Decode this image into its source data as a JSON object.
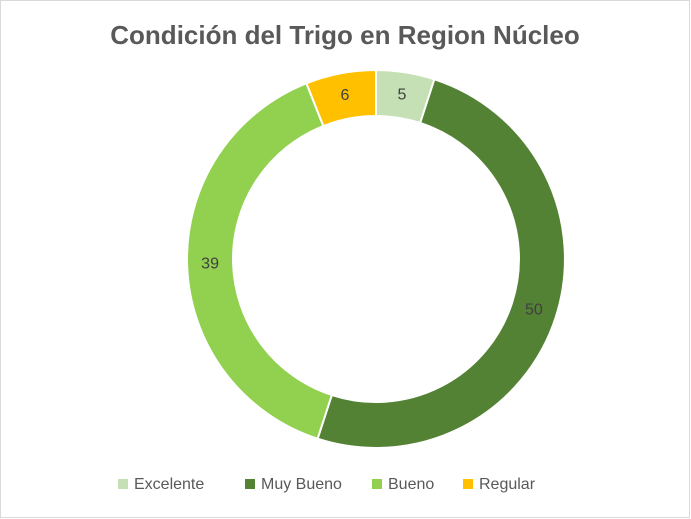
{
  "chart_data": {
    "type": "donut",
    "title": "Condición del Trigo en Region Núcleo",
    "categories": [
      "Excelente",
      "Muy Bueno",
      "Bueno",
      "Regular"
    ],
    "values": [
      5,
      50,
      39,
      6
    ],
    "colors": [
      "#c5e0b4",
      "#548235",
      "#92d050",
      "#ffc000"
    ],
    "legend": "bottom"
  }
}
